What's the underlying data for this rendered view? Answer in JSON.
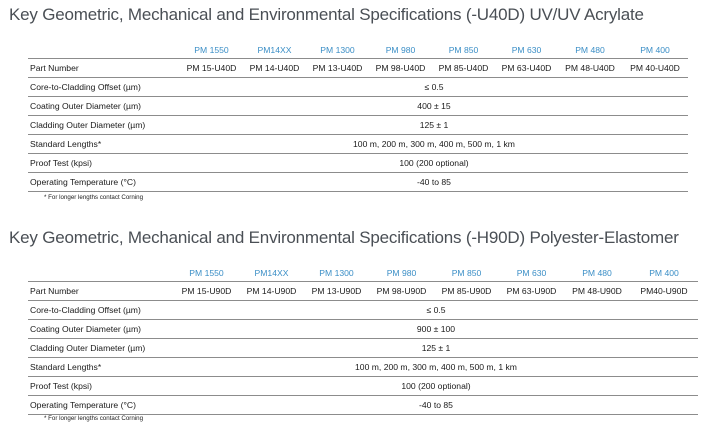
{
  "section1": {
    "title": "Key Geometric, Mechanical and Environmental Specifications (-U40D) UV/UV Acrylate",
    "models": [
      "PM 1550",
      "PM14XX",
      "PM 1300",
      "PM 980",
      "PM 850",
      "PM 630",
      "PM 480",
      "PM 400"
    ],
    "part_label": "Part Number",
    "parts": [
      "PM 15-U40D",
      "PM 14-U40D",
      "PM 13-U40D",
      "PM 98-U40D",
      "PM 85-U40D",
      "PM 63-U40D",
      "PM 48-U40D",
      "PM 40-U40D"
    ],
    "rows": [
      {
        "label": "Core-to-Cladding Offset (µm)",
        "value": "≤ 0.5"
      },
      {
        "label": "Coating Outer Diameter (µm)",
        "value": "400 ± 15"
      },
      {
        "label": "Cladding Outer Diameter (µm)",
        "value": "125 ± 1"
      },
      {
        "label": "Standard Lengths*",
        "value": "100 m, 200 m, 300 m, 400 m, 500 m, 1 km"
      },
      {
        "label": "Proof Test (kpsi)",
        "value": "100 (200 optional)"
      },
      {
        "label": "Operating Temperature (°C)",
        "value": "-40 to 85"
      }
    ],
    "footnote": "* For longer lengths contact Corning"
  },
  "section2": {
    "title": "Key Geometric, Mechanical and Environmental Specifications (-H90D) Polyester-Elastomer",
    "models": [
      "PM 1550",
      "PM14XX",
      "PM 1300",
      "PM 980",
      "PM 850",
      "PM 630",
      "PM 480",
      "PM 400"
    ],
    "part_label": "Part Number",
    "parts": [
      "PM 15-U90D",
      "PM 14-U90D",
      "PM 13-U90D",
      "PM 98-U90D",
      "PM 85-U90D",
      "PM 63-U90D",
      "PM 48-U90D",
      "PM40-U90D"
    ],
    "rows": [
      {
        "label": "Core-to-Cladding Offset (µm)",
        "value": "≤ 0.5"
      },
      {
        "label": "Coating Outer Diameter (µm)",
        "value": "900 ± 100"
      },
      {
        "label": "Cladding Outer Diameter (µm)",
        "value": "125 ± 1"
      },
      {
        "label": "Standard Lengths*",
        "value": "100 m, 200 m, 300 m, 400 m, 500 m, 1 km"
      },
      {
        "label": "Proof Test (kpsi)",
        "value": "100 (200 optional)"
      },
      {
        "label": "Operating Temperature (°C)",
        "value": "-40 to 85"
      }
    ],
    "footnote": "* For longer lengths contact Corning"
  },
  "colors": {
    "title": "#4a4f55",
    "model_header": "#3a8ec6",
    "rule": "#8c8c8c"
  }
}
